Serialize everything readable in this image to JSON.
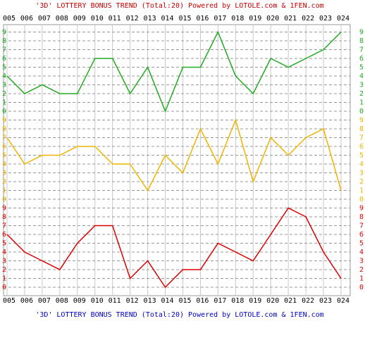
{
  "chart_data": [
    {
      "type": "line",
      "title": "'3D' LOTTERY BONUS TREND (Total:20)  Powered by LOTOLE.com & 1FEN.com",
      "categories": [
        "005",
        "006",
        "007",
        "008",
        "009",
        "010",
        "011",
        "012",
        "013",
        "014",
        "015",
        "016",
        "017",
        "018",
        "019",
        "020",
        "021",
        "022",
        "023",
        "024"
      ],
      "ylim": [
        0,
        9
      ],
      "yticks": [
        0,
        1,
        2,
        3,
        4,
        5,
        6,
        7,
        8,
        9
      ],
      "color": "#22aa22",
      "values": [
        4,
        2,
        3,
        2,
        2,
        6,
        6,
        2,
        5,
        0,
        5,
        5,
        9,
        4,
        2,
        6,
        5,
        6,
        7,
        9
      ]
    },
    {
      "type": "line",
      "ylim": [
        0,
        9
      ],
      "yticks": [
        0,
        1,
        2,
        3,
        4,
        5,
        6,
        7,
        8,
        9
      ],
      "color": "#f0b400",
      "values": [
        7,
        4,
        5,
        5,
        6,
        6,
        4,
        4,
        1,
        5,
        3,
        8,
        4,
        9,
        2,
        7,
        5,
        7,
        8,
        1
      ]
    },
    {
      "type": "line",
      "ylim": [
        0,
        9
      ],
      "yticks": [
        0,
        1,
        2,
        3,
        4,
        5,
        6,
        7,
        8,
        9
      ],
      "color": "#dd0000",
      "values": [
        6,
        4,
        3,
        2,
        5,
        7,
        7,
        1,
        3,
        0,
        2,
        2,
        5,
        4,
        3,
        6,
        9,
        8,
        4,
        1
      ]
    }
  ]
}
